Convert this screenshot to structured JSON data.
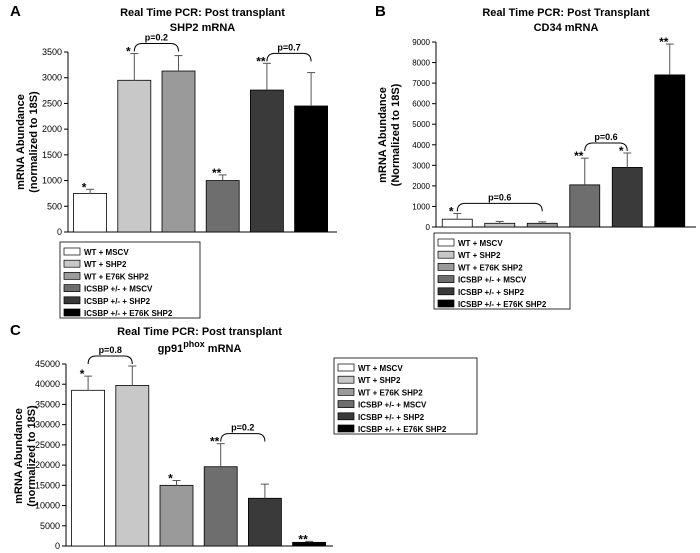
{
  "colors": {
    "wt_mscv": "#ffffff",
    "wt_shp2": "#c8c8c8",
    "wt_e76k": "#9a9a9a",
    "icsbp_mscv": "#6e6e6e",
    "icsbp_shp2": "#3a3a3a",
    "icsbp_e76k": "#000000"
  },
  "panel_letters": [
    "A",
    "B",
    "C"
  ],
  "chart_data": [
    {
      "type": "bar",
      "panel": "A",
      "title": "Real Time PCR:  Post transplant",
      "subtitle": "SHP2 mRNA",
      "ylabel": [
        "mRNA Abundance",
        "(normalized to 18S)"
      ],
      "ylim": [
        0,
        3500
      ],
      "yticks": [
        0,
        500,
        1000,
        1500,
        2000,
        2500,
        3000,
        3500
      ],
      "ytick_labels": [
        "0",
        "500",
        "1000",
        "1500",
        "2000",
        "2500",
        "3000",
        "3500"
      ],
      "categories": [
        "WT + MSCV",
        "WT + SHP2",
        "WT + E76K SHP2",
        "ICSBP +/-  + MSCV",
        "ICSBP +/-  + SHP2",
        "ICSBP +/-  + E76K SHP2"
      ],
      "values": [
        750,
        2950,
        3130,
        1000,
        2760,
        2450
      ],
      "errors": [
        80,
        520,
        300,
        110,
        520,
        650
      ],
      "marks": [
        "*",
        "*",
        "",
        "**",
        "**",
        ""
      ],
      "brackets": [
        {
          "from": 1,
          "to": 2,
          "label": "p=0.2"
        },
        {
          "from": 4,
          "to": 5,
          "label": "p=0.7"
        }
      ],
      "legend": [
        "WT + MSCV",
        "WT + SHP2",
        "WT + E76K SHP2",
        "ICSBP +/-  + MSCV",
        "ICSBP +/-  + SHP2",
        "ICSBP +/-  + E76K SHP2"
      ],
      "grid": false,
      "legend_position": "below"
    },
    {
      "type": "bar",
      "panel": "B",
      "title": "Real Time PCR:  Post Transplant",
      "subtitle": "CD34 mRNA",
      "ylabel": [
        "mRNA Abundance",
        "(Normalized to 18S)"
      ],
      "ylim": [
        0,
        9000
      ],
      "yticks": [
        0,
        1000,
        2000,
        3000,
        4000,
        5000,
        6000,
        7000,
        8000,
        9000
      ],
      "ytick_labels": [
        "0",
        "1000",
        "2000",
        "3000",
        "4000",
        "5000",
        "6000",
        "7000",
        "8000",
        "9000"
      ],
      "categories": [
        "WT + MSCV",
        "WT + SHP2",
        "WT + E76K SHP2",
        "ICSBP +/-  + MSCV",
        "ICSBP +/-  + SHP2",
        "ICSBP +/-  + E76K SHP2"
      ],
      "values": [
        380,
        180,
        180,
        2050,
        2900,
        7400
      ],
      "errors": [
        280,
        90,
        70,
        1300,
        700,
        1500
      ],
      "marks": [
        "*",
        "",
        "",
        "**",
        "*",
        "**"
      ],
      "brackets": [
        {
          "from": 0,
          "to": 2,
          "label": "p=0.6"
        },
        {
          "from": 3,
          "to": 4,
          "label": "p=0.6"
        }
      ],
      "legend": [
        "WT + MSCV",
        "WT + SHP2",
        "WT + E76K SHP2",
        "ICSBP +/-  + MSCV",
        "ICSBP +/-  + SHP2",
        "ICSBP +/-  + E76K SHP2"
      ],
      "grid": false,
      "legend_position": "below"
    },
    {
      "type": "bar",
      "panel": "C",
      "title": "Real Time PCR:  Post transplant",
      "subtitle_main": "gp91",
      "subtitle_sup": "phox",
      "subtitle_tail": " mRNA",
      "ylabel": [
        "mRNA Abundance",
        "(normalized to 18S)"
      ],
      "ylim": [
        0,
        45000
      ],
      "yticks": [
        0,
        5000,
        10000,
        15000,
        20000,
        25000,
        30000,
        35000,
        40000,
        45000
      ],
      "ytick_labels": [
        "0",
        "5000",
        "10000",
        "15000",
        "20000",
        "25000",
        "30000",
        "35000",
        "40000",
        "45000"
      ],
      "categories": [
        "WT + MSCV",
        "WT + SHP2",
        "WT + E76K SHP2",
        "ICSBP +/-  + MSCV",
        "ICSBP +/-  + SHP2",
        "ICSBP +/-  + E76K SHP2"
      ],
      "values": [
        38500,
        39700,
        15000,
        19600,
        11800,
        900
      ],
      "errors": [
        3500,
        4800,
        1200,
        5700,
        3500,
        250
      ],
      "marks": [
        "*",
        "",
        "*",
        "**",
        "",
        "**"
      ],
      "brackets": [
        {
          "from": 0,
          "to": 1,
          "label": "p=0.8"
        },
        {
          "from": 3,
          "to": 4,
          "label": "p=0.2"
        }
      ],
      "legend": [
        "WT + MSCV",
        "WT + SHP2",
        "WT + E76K SHP2",
        "ICSBP +/-  + MSCV",
        "ICSBP +/-  + SHP2",
        "ICSBP +/-  + E76K SHP2"
      ],
      "grid": false,
      "legend_position": "right"
    }
  ]
}
